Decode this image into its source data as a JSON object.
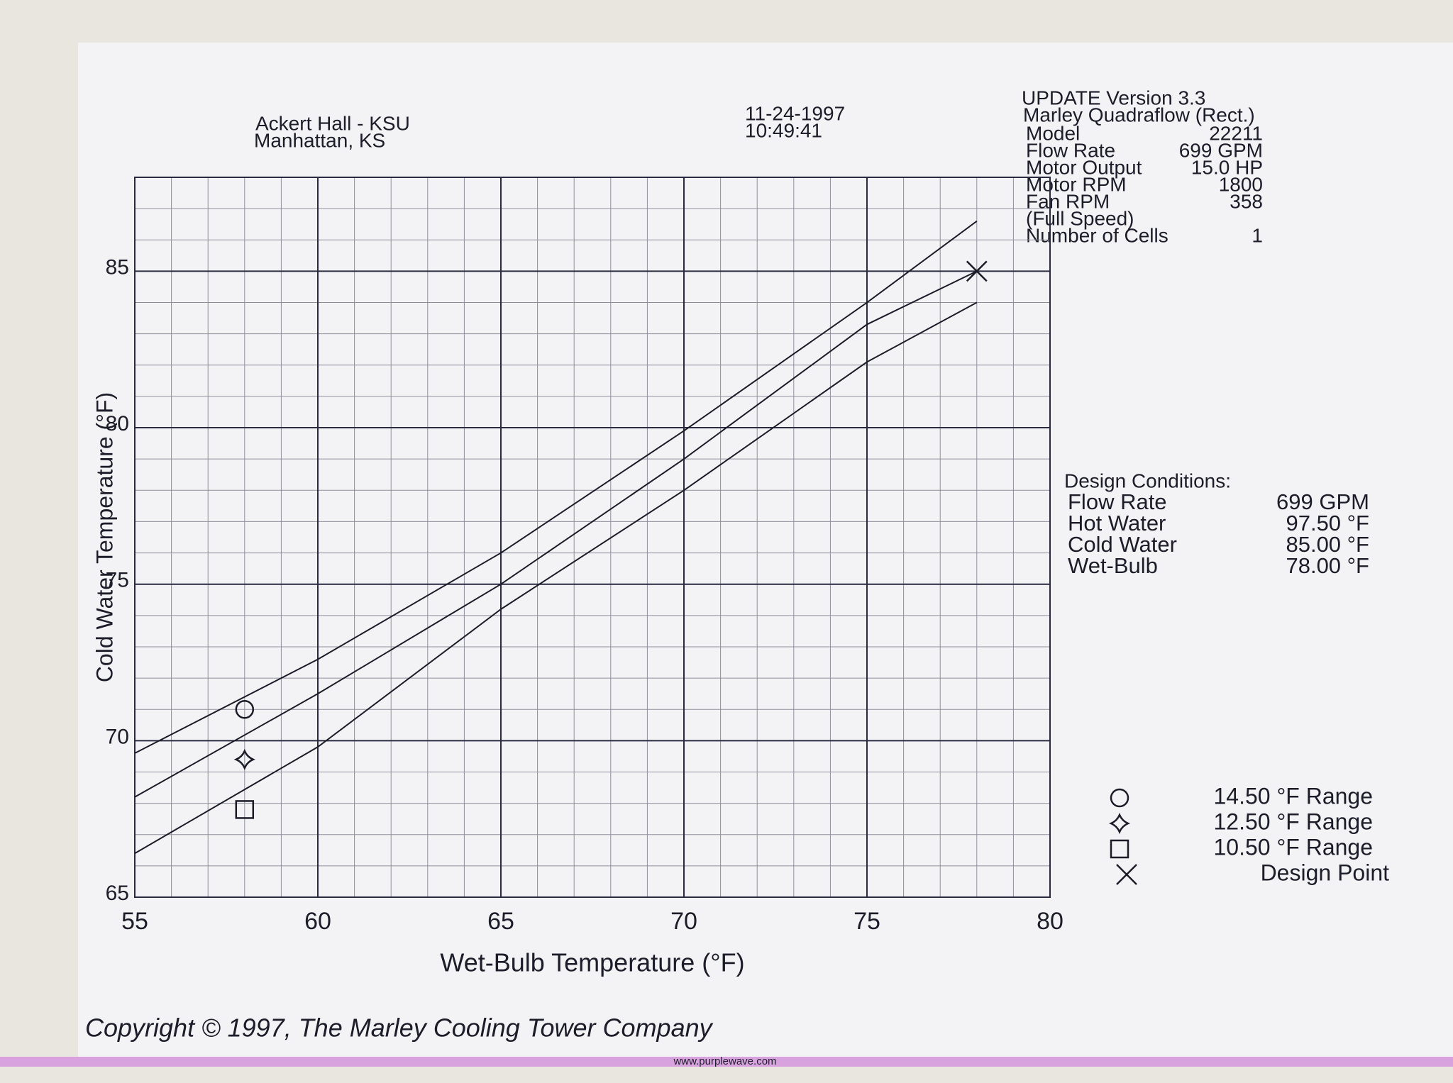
{
  "header": {
    "site": [
      "Ackert Hall - KSU",
      "Manhattan, KS"
    ],
    "timestamp": [
      "11-24-1997",
      "10:49:41"
    ]
  },
  "info": {
    "title": "UPDATE Version 3.3",
    "product": "Marley Quadraflow (Rect.)",
    "rows": [
      [
        "Model",
        "22211"
      ],
      [
        "Flow Rate",
        "699 GPM"
      ],
      [
        "Motor Output",
        "15.0 HP"
      ],
      [
        "Motor RPM",
        "1800"
      ],
      [
        "Fan RPM",
        "358"
      ],
      [
        "(Full Speed)"
      ],
      [
        "Number of Cells",
        "1"
      ]
    ]
  },
  "design_conditions": {
    "title": "Design Conditions:",
    "rows": [
      [
        "Flow Rate",
        "699 GPM"
      ],
      [
        "Hot Water",
        "97.50 °F"
      ],
      [
        "Cold Water",
        "85.00 °F"
      ],
      [
        "Wet-Bulb",
        "78.00 °F"
      ]
    ]
  },
  "chart_data": {
    "type": "line",
    "x_label": "Wet-Bulb Temperature (°F)",
    "y_label": "Cold Water Temperature (°F)",
    "x": [
      55,
      60,
      65,
      70,
      75,
      78
    ],
    "xlim": [
      55,
      80
    ],
    "ylim": [
      65,
      88
    ],
    "xticks": [
      55,
      60,
      65,
      70,
      75,
      80
    ],
    "yticks": [
      65,
      70,
      75,
      80,
      85
    ],
    "minor_grid": 1,
    "grid": true,
    "color": "#1c1c28",
    "series": [
      {
        "name": "14.50 °F Range",
        "marker": "circle",
        "values": [
          69.6,
          72.6,
          76.0,
          79.9,
          84.0,
          86.6
        ],
        "marker_point": [
          58,
          71
        ]
      },
      {
        "name": "12.50 °F Range",
        "marker": "star",
        "values": [
          68.2,
          71.5,
          75.0,
          79.0,
          83.3,
          85.0
        ],
        "marker_point": [
          58,
          69.4
        ]
      },
      {
        "name": "10.50 °F Range",
        "marker": "square",
        "values": [
          66.4,
          69.8,
          74.2,
          78.0,
          82.1,
          84.0
        ],
        "marker_point": [
          58,
          67.8
        ]
      }
    ],
    "design_point": {
      "name": "Design Point",
      "marker": "x",
      "x": 78,
      "y": 85
    }
  },
  "footer": {
    "copyright": "Copyright © 1997, The Marley Cooling Tower Company",
    "watermark": "www.purplewave.com"
  }
}
